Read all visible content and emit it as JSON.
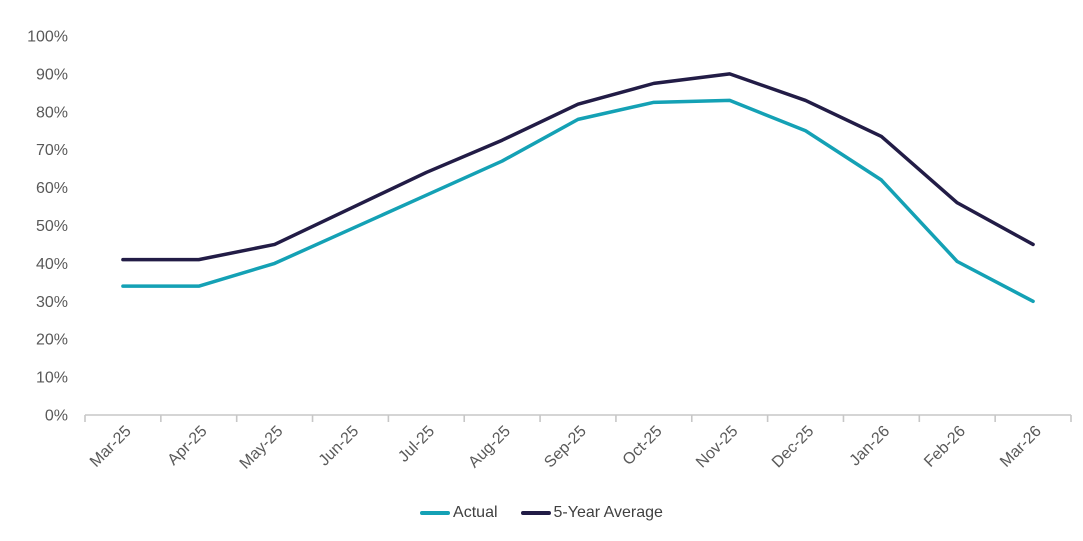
{
  "chart_data": {
    "type": "line",
    "categories": [
      "Mar-25",
      "Apr-25",
      "May-25",
      "Jun-25",
      "Jul-25",
      "Aug-25",
      "Sep-25",
      "Oct-25",
      "Nov-25",
      "Dec-25",
      "Jan-26",
      "Feb-26",
      "Mar-26"
    ],
    "series": [
      {
        "name": "Actual",
        "color": "#14A1B5",
        "values": [
          34,
          34,
          40,
          49,
          58,
          67,
          78,
          82.5,
          83,
          75,
          62,
          40.5,
          30
        ]
      },
      {
        "name": "5-Year Average",
        "color": "#221C46",
        "values": [
          41,
          41,
          45,
          54.5,
          64,
          72.5,
          82,
          87.5,
          90,
          83,
          73.5,
          56,
          45
        ]
      }
    ],
    "title": "",
    "xlabel": "",
    "ylabel": "",
    "ylim": [
      0,
      100
    ],
    "y_tick_labels": [
      "0%",
      "10%",
      "20%",
      "30%",
      "40%",
      "50%",
      "60%",
      "70%",
      "80%",
      "90%",
      "100%"
    ],
    "y_tick_step": 10,
    "grid": false,
    "legend_position": "bottom-center",
    "x_label_rotation_deg": -45
  },
  "colors": {
    "background": "#FFFFFF",
    "axis_line": "#C7C7C7",
    "axis_label_text": "#595959",
    "legend_text": "#404040",
    "series_actual": "#14A1B5",
    "series_five_year_average": "#221C46"
  }
}
